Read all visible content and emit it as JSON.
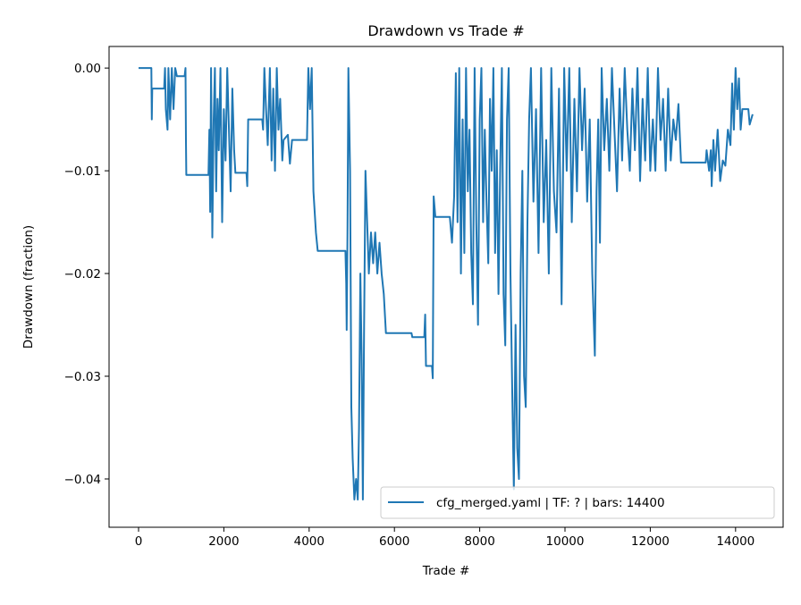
{
  "chart_data": {
    "type": "line",
    "title": "Drawdown vs Trade #",
    "xlabel": "Trade #",
    "ylabel": "Drawdown (fraction)",
    "xlim": [
      -692,
      15115
    ],
    "ylim": [
      -0.0447,
      0.0021
    ],
    "xticks": [
      0,
      2000,
      4000,
      6000,
      8000,
      10000,
      12000,
      14000
    ],
    "xtick_labels": [
      "0",
      "2000",
      "4000",
      "6000",
      "8000",
      "10000",
      "12000",
      "14000"
    ],
    "yticks": [
      0,
      -0.01,
      -0.02,
      -0.03,
      -0.04
    ],
    "ytick_labels": [
      "0.00",
      "−0.01",
      "−0.02",
      "−0.03",
      "−0.04"
    ],
    "grid": false,
    "legend_placement": "lower-right",
    "series": [
      {
        "name": "cfg_merged.yaml | TF: ? | bars: 14400",
        "color": "#1f77b4",
        "points": [
          [
            0,
            0
          ],
          [
            300,
            0
          ],
          [
            310,
            -0.005
          ],
          [
            320,
            -0.002
          ],
          [
            600,
            -0.002
          ],
          [
            620,
            0
          ],
          [
            640,
            -0.004
          ],
          [
            680,
            -0.006
          ],
          [
            700,
            0
          ],
          [
            740,
            -0.005
          ],
          [
            780,
            0
          ],
          [
            820,
            -0.004
          ],
          [
            860,
            0
          ],
          [
            900,
            -0.0008
          ],
          [
            1080,
            -0.0008
          ],
          [
            1100,
            0
          ],
          [
            1110,
            -0.007
          ],
          [
            1120,
            -0.0104
          ],
          [
            1640,
            -0.0104
          ],
          [
            1660,
            -0.006
          ],
          [
            1680,
            -0.014
          ],
          [
            1700,
            0
          ],
          [
            1730,
            -0.0165
          ],
          [
            1760,
            -0.005
          ],
          [
            1790,
            0
          ],
          [
            1820,
            -0.012
          ],
          [
            1850,
            -0.003
          ],
          [
            1880,
            -0.008
          ],
          [
            1920,
            0
          ],
          [
            1960,
            -0.015
          ],
          [
            2000,
            -0.004
          ],
          [
            2040,
            -0.009
          ],
          [
            2080,
            0
          ],
          [
            2120,
            -0.006
          ],
          [
            2160,
            -0.012
          ],
          [
            2200,
            -0.002
          ],
          [
            2240,
            -0.008
          ],
          [
            2270,
            -0.0102
          ],
          [
            2530,
            -0.0102
          ],
          [
            2550,
            -0.0115
          ],
          [
            2570,
            -0.005
          ],
          [
            2900,
            -0.005
          ],
          [
            2920,
            -0.006
          ],
          [
            2950,
            0
          ],
          [
            2990,
            -0.004
          ],
          [
            3030,
            -0.0075
          ],
          [
            3080,
            0
          ],
          [
            3120,
            -0.009
          ],
          [
            3160,
            -0.002
          ],
          [
            3200,
            -0.01
          ],
          [
            3240,
            0
          ],
          [
            3280,
            -0.006
          ],
          [
            3320,
            -0.003
          ],
          [
            3370,
            -0.009
          ],
          [
            3400,
            -0.007
          ],
          [
            3500,
            -0.0065
          ],
          [
            3550,
            -0.0093
          ],
          [
            3600,
            -0.007
          ],
          [
            3950,
            -0.007
          ],
          [
            3980,
            0
          ],
          [
            4020,
            -0.004
          ],
          [
            4060,
            0
          ],
          [
            4100,
            -0.012
          ],
          [
            4130,
            -0.014
          ],
          [
            4160,
            -0.016
          ],
          [
            4200,
            -0.0178
          ],
          [
            4850,
            -0.0178
          ],
          [
            4870,
            -0.021
          ],
          [
            4880,
            -0.0255
          ],
          [
            4900,
            -0.016
          ],
          [
            4920,
            0
          ],
          [
            4960,
            -0.01
          ],
          [
            4990,
            -0.033
          ],
          [
            5020,
            -0.038
          ],
          [
            5060,
            -0.042
          ],
          [
            5100,
            -0.04
          ],
          [
            5140,
            -0.042
          ],
          [
            5170,
            -0.035
          ],
          [
            5200,
            -0.02
          ],
          [
            5230,
            -0.028
          ],
          [
            5260,
            -0.042
          ],
          [
            5290,
            -0.025
          ],
          [
            5320,
            -0.01
          ],
          [
            5360,
            -0.015
          ],
          [
            5400,
            -0.02
          ],
          [
            5450,
            -0.016
          ],
          [
            5500,
            -0.019
          ],
          [
            5550,
            -0.016
          ],
          [
            5600,
            -0.02
          ],
          [
            5650,
            -0.017
          ],
          [
            5700,
            -0.02
          ],
          [
            5750,
            -0.022
          ],
          [
            5800,
            -0.0258
          ],
          [
            6400,
            -0.0258
          ],
          [
            6420,
            -0.0262
          ],
          [
            6700,
            -0.0262
          ],
          [
            6720,
            -0.024
          ],
          [
            6740,
            -0.029
          ],
          [
            6880,
            -0.029
          ],
          [
            6900,
            -0.0302
          ],
          [
            6920,
            -0.0125
          ],
          [
            6960,
            -0.0145
          ],
          [
            7300,
            -0.0145
          ],
          [
            7350,
            -0.017
          ],
          [
            7400,
            -0.0125
          ],
          [
            7440,
            -0.0005
          ],
          [
            7480,
            -0.015
          ],
          [
            7520,
            0
          ],
          [
            7560,
            -0.02
          ],
          [
            7600,
            -0.005
          ],
          [
            7640,
            -0.018
          ],
          [
            7680,
            0
          ],
          [
            7720,
            -0.012
          ],
          [
            7760,
            -0.006
          ],
          [
            7800,
            -0.018
          ],
          [
            7840,
            -0.023
          ],
          [
            7880,
            0
          ],
          [
            7920,
            -0.015
          ],
          [
            7960,
            -0.025
          ],
          [
            8000,
            -0.005
          ],
          [
            8040,
            0
          ],
          [
            8080,
            -0.015
          ],
          [
            8120,
            -0.006
          ],
          [
            8160,
            -0.013
          ],
          [
            8200,
            -0.019
          ],
          [
            8240,
            -0.003
          ],
          [
            8280,
            -0.01
          ],
          [
            8320,
            0
          ],
          [
            8360,
            -0.018
          ],
          [
            8400,
            -0.008
          ],
          [
            8440,
            -0.022
          ],
          [
            8480,
            -0.01
          ],
          [
            8520,
            0
          ],
          [
            8560,
            -0.022
          ],
          [
            8600,
            -0.027
          ],
          [
            8640,
            -0.005
          ],
          [
            8680,
            0
          ],
          [
            8720,
            -0.02
          ],
          [
            8760,
            -0.031
          ],
          [
            8800,
            -0.041
          ],
          [
            8840,
            -0.025
          ],
          [
            8880,
            -0.037
          ],
          [
            8920,
            -0.04
          ],
          [
            8960,
            -0.02
          ],
          [
            9000,
            -0.01
          ],
          [
            9040,
            -0.03
          ],
          [
            9080,
            -0.033
          ],
          [
            9120,
            -0.015
          ],
          [
            9160,
            -0.005
          ],
          [
            9200,
            0
          ],
          [
            9260,
            -0.013
          ],
          [
            9320,
            -0.004
          ],
          [
            9380,
            -0.018
          ],
          [
            9440,
            0
          ],
          [
            9500,
            -0.015
          ],
          [
            9560,
            -0.007
          ],
          [
            9620,
            -0.02
          ],
          [
            9680,
            0
          ],
          [
            9740,
            -0.012
          ],
          [
            9800,
            -0.016
          ],
          [
            9860,
            -0.002
          ],
          [
            9920,
            -0.023
          ],
          [
            9980,
            0
          ],
          [
            10040,
            -0.01
          ],
          [
            10100,
            0
          ],
          [
            10160,
            -0.015
          ],
          [
            10220,
            -0.003
          ],
          [
            10280,
            -0.012
          ],
          [
            10340,
            0
          ],
          [
            10400,
            -0.008
          ],
          [
            10460,
            -0.002
          ],
          [
            10520,
            -0.013
          ],
          [
            10580,
            -0.005
          ],
          [
            10640,
            -0.02
          ],
          [
            10700,
            -0.028
          ],
          [
            10740,
            -0.012
          ],
          [
            10780,
            -0.005
          ],
          [
            10820,
            -0.017
          ],
          [
            10860,
            0
          ],
          [
            10920,
            -0.008
          ],
          [
            10980,
            -0.003
          ],
          [
            11040,
            -0.01
          ],
          [
            11100,
            0
          ],
          [
            11160,
            -0.006
          ],
          [
            11220,
            -0.012
          ],
          [
            11280,
            -0.002
          ],
          [
            11340,
            -0.009
          ],
          [
            11400,
            0
          ],
          [
            11460,
            -0.006
          ],
          [
            11520,
            -0.01
          ],
          [
            11580,
            -0.002
          ],
          [
            11640,
            -0.008
          ],
          [
            11700,
            0
          ],
          [
            11760,
            -0.011
          ],
          [
            11820,
            -0.003
          ],
          [
            11880,
            -0.009
          ],
          [
            11940,
            0
          ],
          [
            12000,
            -0.01
          ],
          [
            12060,
            -0.005
          ],
          [
            12120,
            -0.01
          ],
          [
            12180,
            0
          ],
          [
            12240,
            -0.007
          ],
          [
            12300,
            -0.003
          ],
          [
            12360,
            -0.01
          ],
          [
            12420,
            -0.002
          ],
          [
            12480,
            -0.009
          ],
          [
            12540,
            -0.005
          ],
          [
            12600,
            -0.007
          ],
          [
            12660,
            -0.0035
          ],
          [
            12720,
            -0.0092
          ],
          [
            13300,
            -0.0092
          ],
          [
            13320,
            -0.008
          ],
          [
            13380,
            -0.01
          ],
          [
            13420,
            -0.008
          ],
          [
            13440,
            -0.0115
          ],
          [
            13480,
            -0.007
          ],
          [
            13520,
            -0.01
          ],
          [
            13580,
            -0.006
          ],
          [
            13640,
            -0.011
          ],
          [
            13700,
            -0.009
          ],
          [
            13760,
            -0.0095
          ],
          [
            13820,
            -0.006
          ],
          [
            13880,
            -0.0075
          ],
          [
            13920,
            -0.0015
          ],
          [
            13960,
            -0.006
          ],
          [
            14000,
            0
          ],
          [
            14040,
            -0.004
          ],
          [
            14080,
            -0.001
          ],
          [
            14120,
            -0.006
          ],
          [
            14160,
            -0.004
          ],
          [
            14300,
            -0.004
          ],
          [
            14330,
            -0.0055
          ],
          [
            14400,
            -0.0045
          ]
        ]
      }
    ]
  }
}
